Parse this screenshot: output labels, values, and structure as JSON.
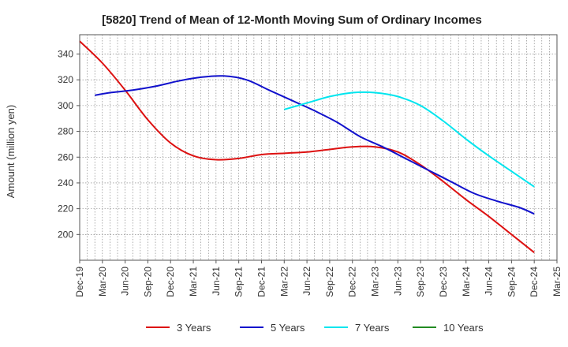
{
  "chart_data": {
    "type": "line",
    "title": "[5820]  Trend of Mean of 12-Month Moving Sum of Ordinary Incomes",
    "xlabel": "",
    "ylabel": "Amount (million yen)",
    "ylim": [
      180,
      355
    ],
    "yticks": [
      200,
      220,
      240,
      260,
      280,
      300,
      320,
      340
    ],
    "x_start": "Dec-19",
    "x_months": 63,
    "xticks": [
      {
        "label": "Dec-19",
        "month": 0
      },
      {
        "label": "Mar-20",
        "month": 3
      },
      {
        "label": "Jun-20",
        "month": 6
      },
      {
        "label": "Sep-20",
        "month": 9
      },
      {
        "label": "Dec-20",
        "month": 12
      },
      {
        "label": "Mar-21",
        "month": 15
      },
      {
        "label": "Jun-21",
        "month": 18
      },
      {
        "label": "Sep-21",
        "month": 21
      },
      {
        "label": "Dec-21",
        "month": 24
      },
      {
        "label": "Mar-22",
        "month": 27
      },
      {
        "label": "Jun-22",
        "month": 30
      },
      {
        "label": "Sep-22",
        "month": 33
      },
      {
        "label": "Dec-22",
        "month": 36
      },
      {
        "label": "Mar-23",
        "month": 39
      },
      {
        "label": "Jun-23",
        "month": 42
      },
      {
        "label": "Sep-23",
        "month": 45
      },
      {
        "label": "Dec-23",
        "month": 48
      },
      {
        "label": "Mar-24",
        "month": 51
      },
      {
        "label": "Jun-24",
        "month": 54
      },
      {
        "label": "Sep-24",
        "month": 57
      },
      {
        "label": "Dec-24",
        "month": 60
      },
      {
        "label": "Mar-25",
        "month": 63
      }
    ],
    "grid": true,
    "legend_position": "bottom",
    "series": [
      {
        "name": "3 Years",
        "color": "#dd1111",
        "points": [
          [
            0,
            350
          ],
          [
            3,
            333
          ],
          [
            6,
            312
          ],
          [
            9,
            289
          ],
          [
            12,
            271
          ],
          [
            15,
            261
          ],
          [
            18,
            258
          ],
          [
            21,
            259
          ],
          [
            24,
            262
          ],
          [
            27,
            263
          ],
          [
            30,
            264
          ],
          [
            33,
            266
          ],
          [
            36,
            268
          ],
          [
            39,
            268
          ],
          [
            42,
            264
          ],
          [
            45,
            254
          ],
          [
            48,
            241
          ],
          [
            51,
            227
          ],
          [
            54,
            214
          ],
          [
            57,
            200
          ],
          [
            60,
            186
          ]
        ]
      },
      {
        "name": "5 Years",
        "color": "#1111cc",
        "points": [
          [
            2,
            308
          ],
          [
            4,
            310
          ],
          [
            7,
            312
          ],
          [
            10,
            315
          ],
          [
            13,
            319
          ],
          [
            16,
            322
          ],
          [
            19,
            323
          ],
          [
            22,
            320
          ],
          [
            25,
            312
          ],
          [
            28,
            304
          ],
          [
            31,
            296
          ],
          [
            34,
            287
          ],
          [
            37,
            276
          ],
          [
            40,
            268
          ],
          [
            43,
            259
          ],
          [
            46,
            250
          ],
          [
            49,
            241
          ],
          [
            52,
            232
          ],
          [
            55,
            226
          ],
          [
            58,
            221
          ],
          [
            60,
            216
          ]
        ]
      },
      {
        "name": "7 Years",
        "color": "#00e5ee",
        "points": [
          [
            27,
            297
          ],
          [
            30,
            302
          ],
          [
            33,
            307
          ],
          [
            36,
            310
          ],
          [
            39,
            310
          ],
          [
            42,
            307
          ],
          [
            45,
            300
          ],
          [
            48,
            288
          ],
          [
            51,
            274
          ],
          [
            54,
            261
          ],
          [
            57,
            249
          ],
          [
            60,
            237
          ]
        ]
      },
      {
        "name": "10 Years",
        "color": "#228b22",
        "points": []
      }
    ]
  }
}
